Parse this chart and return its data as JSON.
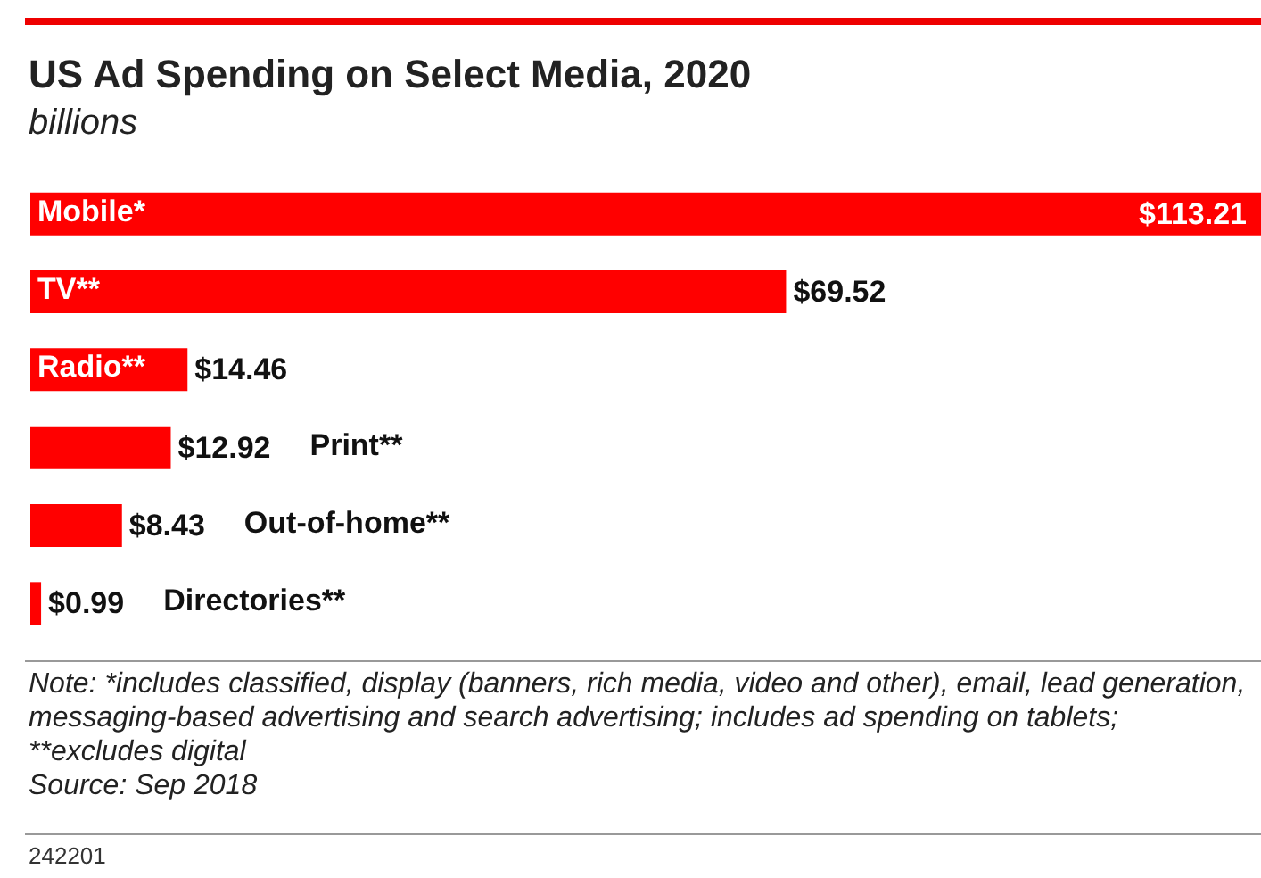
{
  "chart_data": {
    "type": "bar",
    "orientation": "horizontal",
    "tick_labels": false,
    "title": "US Ad Spending on Select Media, 2020",
    "subtitle": "billions",
    "categories": [
      "Mobile*",
      "TV**",
      "Radio**",
      "Print**",
      "Out-of-home**",
      "Directories**"
    ],
    "values": [
      113.21,
      69.52,
      14.46,
      12.92,
      8.43,
      0.99
    ],
    "value_labels": [
      "$113.21",
      "$69.52",
      "$14.46",
      "$12.92",
      "$8.43",
      "$0.99"
    ],
    "color": "#ff0000",
    "annotations": [
      "Note: *includes classified, display (banners, rich media, video and other), email, lead generation, messaging-based advertising and search advertising; includes ad spending on tablets; **excludes digital",
      "Source: Sep 2018",
      "242201"
    ]
  }
}
